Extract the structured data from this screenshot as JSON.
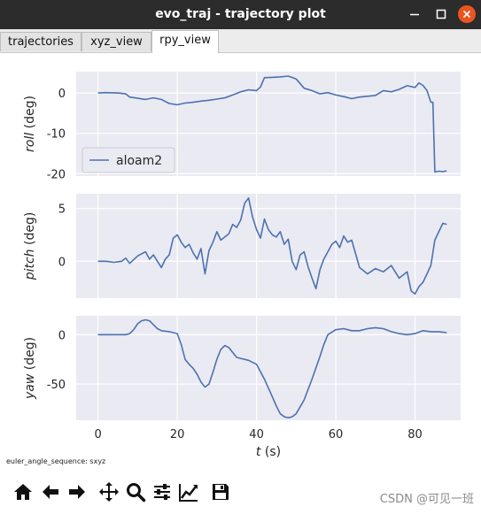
{
  "window": {
    "title": "evo_traj - trajectory plot"
  },
  "tabs": [
    {
      "label": "trajectories",
      "active": false
    },
    {
      "label": "xyz_view",
      "active": false
    },
    {
      "label": "rpy_view",
      "active": true
    }
  ],
  "footer": {
    "euler_text": "euler_angle_sequence: sxyz"
  },
  "toolbar": {
    "icons": [
      "home-icon",
      "back-arrow-icon",
      "forward-arrow-icon",
      "pan-icon",
      "zoom-icon",
      "configure-subplots-icon",
      "edit-axis-icon",
      "save-icon"
    ]
  },
  "watermark": "CSDN @可见一班",
  "chart_data": [
    {
      "type": "line",
      "ylabel": "roll (deg)",
      "ylabel_var": "roll",
      "ylabel_unit": " (deg)",
      "xlim": [
        -5.5,
        91.5
      ],
      "ylim": [
        -20.6,
        5.3
      ],
      "yticks": [
        0,
        -10,
        -20
      ],
      "grid": true,
      "legend": {
        "entries": [
          "aloam2"
        ],
        "placement": "lower-left"
      },
      "series": [
        {
          "name": "aloam2",
          "color": "#4c72b0",
          "x": [
            0,
            2,
            5,
            7,
            8,
            10,
            12,
            14,
            16,
            18,
            20,
            22,
            24,
            26,
            28,
            30,
            32,
            34,
            36,
            38,
            40,
            41,
            42,
            44,
            46,
            48,
            50,
            52,
            54,
            56,
            58,
            60,
            62,
            64,
            66,
            68,
            70,
            72,
            74,
            76,
            78,
            80,
            81,
            82,
            83,
            84,
            84.5,
            85,
            86,
            87,
            88
          ],
          "y": [
            0,
            0.1,
            0,
            -0.2,
            -1,
            -1.3,
            -1.6,
            -1.2,
            -1.6,
            -2.6,
            -2.9,
            -2.5,
            -2.3,
            -2.0,
            -1.8,
            -1.5,
            -1.2,
            -0.5,
            0.3,
            0.8,
            0.6,
            1.5,
            3.8,
            3.9,
            4.0,
            4.2,
            3.5,
            1.2,
            0.6,
            -0.2,
            0.1,
            -0.5,
            -0.9,
            -1.4,
            -1.0,
            -0.8,
            -0.6,
            0.6,
            0.3,
            0.9,
            1.8,
            1.4,
            2.5,
            1.9,
            0.6,
            -2.3,
            -2.3,
            -19.6,
            -19.4,
            -19.5,
            -19.3
          ]
        }
      ]
    },
    {
      "type": "line",
      "ylabel": "pitch (deg)",
      "ylabel_var": "pitch",
      "ylabel_unit": " (deg)",
      "xlim": [
        -5.5,
        91.5
      ],
      "ylim": [
        -3.5,
        6.4
      ],
      "yticks": [
        5,
        0
      ],
      "grid": true,
      "series": [
        {
          "name": "aloam2",
          "color": "#4c72b0",
          "x": [
            0,
            2,
            4,
            6,
            7,
            8,
            10,
            12,
            13,
            14,
            15,
            16,
            17,
            18,
            19,
            20,
            21,
            22,
            23,
            24,
            25,
            26,
            27,
            28,
            29,
            30,
            31,
            32,
            33,
            34,
            35,
            36,
            37,
            38,
            39,
            40,
            41,
            42,
            43,
            44,
            45,
            46,
            47,
            48,
            49,
            50,
            51,
            52,
            53,
            54,
            55,
            56,
            57,
            58,
            59,
            60,
            61,
            62,
            63,
            64,
            66,
            68,
            70,
            72,
            74,
            76,
            78,
            79,
            80,
            81,
            82,
            83,
            84,
            85,
            86,
            87,
            88
          ],
          "y": [
            0,
            0,
            -0.1,
            0,
            0.3,
            -0.2,
            0.5,
            0.9,
            0.2,
            0.6,
            0.0,
            -0.6,
            0.2,
            0.6,
            2.2,
            2.5,
            1.8,
            1.3,
            1.6,
            0.8,
            0.2,
            1.2,
            -1.2,
            1.0,
            1.8,
            2.8,
            2.0,
            2.3,
            2.6,
            3.5,
            3.2,
            3.9,
            5.5,
            6.0,
            4.2,
            3.0,
            2.2,
            4.0,
            3.0,
            2.5,
            2.3,
            2.8,
            1.6,
            2.1,
            0.0,
            -0.8,
            0.6,
            0.9,
            -0.5,
            -1.6,
            -2.6,
            -0.8,
            0.2,
            0.9,
            1.6,
            1.9,
            1.3,
            2.4,
            1.8,
            2.0,
            -0.6,
            -1.2,
            -0.7,
            -1.0,
            -0.4,
            -1.6,
            -1.0,
            -2.8,
            -3.1,
            -2.4,
            -2.0,
            -1.2,
            -0.4,
            2.0,
            2.8,
            3.6,
            3.5
          ]
        }
      ]
    },
    {
      "type": "line",
      "ylabel": "yaw (deg)",
      "ylabel_var": "yaw",
      "ylabel_unit": " (deg)",
      "xlim": [
        -5.5,
        91.5
      ],
      "ylim": [
        -86.5,
        19
      ],
      "yticks": [
        0,
        -50
      ],
      "xticks": [
        0,
        20,
        40,
        60,
        80
      ],
      "xlabel": "t (s)",
      "xlabel_var": "t",
      "xlabel_unit": " (s)",
      "grid": true,
      "series": [
        {
          "name": "aloam2",
          "color": "#4c72b0",
          "x": [
            0,
            4,
            7,
            8,
            9,
            10,
            11,
            12,
            13,
            14,
            15,
            16,
            18,
            20,
            21,
            22,
            23,
            24,
            25,
            26,
            27,
            28,
            29,
            30,
            31,
            32,
            33,
            34,
            35,
            36,
            38,
            40,
            42,
            44,
            45,
            46,
            47,
            48,
            49,
            50,
            52,
            54,
            56,
            57,
            58,
            60,
            62,
            64,
            66,
            68,
            70,
            72,
            74,
            76,
            78,
            80,
            82,
            84,
            86,
            88
          ],
          "y": [
            0,
            0,
            0,
            1,
            5,
            11,
            14,
            15,
            14,
            10,
            6,
            4,
            3,
            1,
            -10,
            -25,
            -30,
            -34,
            -40,
            -48,
            -53,
            -50,
            -38,
            -25,
            -15,
            -11,
            -13,
            -18,
            -23,
            -24,
            -26,
            -30,
            -45,
            -63,
            -72,
            -80,
            -83,
            -84,
            -83,
            -80,
            -66,
            -45,
            -22,
            -10,
            0,
            5,
            6,
            4,
            4,
            6,
            7,
            6,
            3,
            1,
            0,
            1,
            4,
            3,
            3,
            2
          ]
        }
      ]
    }
  ]
}
